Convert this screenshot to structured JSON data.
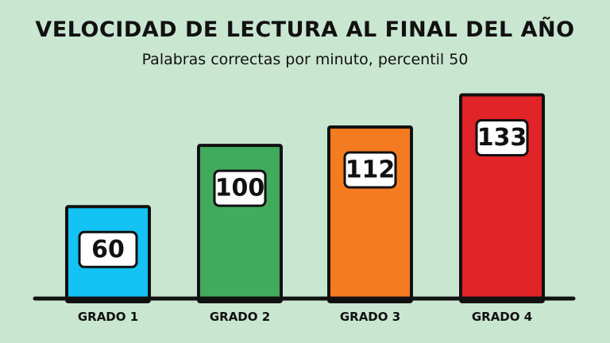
{
  "chart_data": {
    "type": "bar",
    "title": "VELOCIDAD DE LECTURA AL FINAL DEL AÑO",
    "subtitle": "Palabras correctas por minuto, percentil 50",
    "categories": [
      "GRADO 1",
      "GRADO 2",
      "GRADO 3",
      "GRADO 4"
    ],
    "values": [
      60,
      100,
      112,
      133
    ],
    "colors": [
      "#12c3f4",
      "#41ab5d",
      "#f57b20",
      "#e02427"
    ],
    "data_labels": [
      "60",
      "100",
      "112",
      "133"
    ],
    "ylim": [
      0,
      140
    ],
    "grid": false,
    "xlabel": "",
    "ylabel": ""
  }
}
